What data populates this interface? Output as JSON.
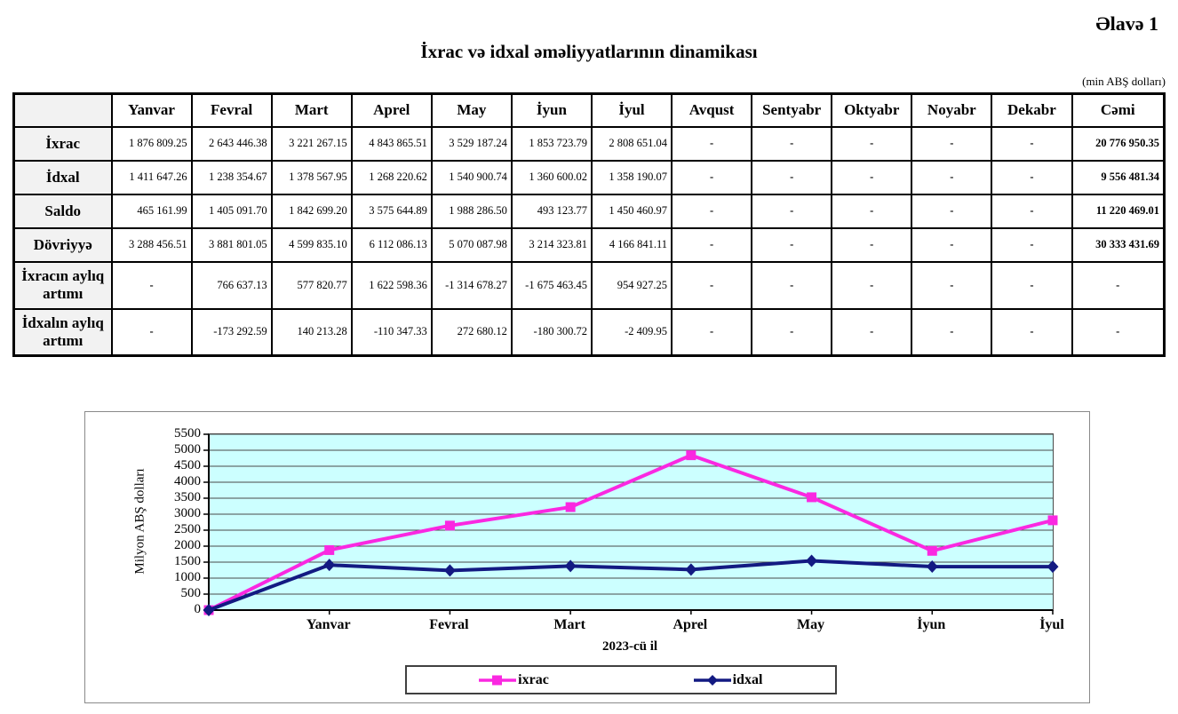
{
  "page": {
    "appendix_label": "Əlavə 1",
    "title": "İxrac və idxal əməliyyatlarının dinamikası",
    "unit_note": "(min ABŞ dolları)"
  },
  "table": {
    "columns": [
      "",
      "Yanvar",
      "Fevral",
      "Mart",
      "Aprel",
      "May",
      "İyun",
      "İyul",
      "Avqust",
      "Sentyabr",
      "Oktyabr",
      "Noyabr",
      "Dekabr",
      "Cəmi"
    ],
    "rows": [
      {
        "label": "İxrac",
        "values": [
          "1 876 809.25",
          "2 643 446.38",
          "3 221 267.15",
          "4 843 865.51",
          "3 529 187.24",
          "1 853 723.79",
          "2 808 651.04",
          "-",
          "-",
          "-",
          "-",
          "-",
          "20 776 950.35"
        ]
      },
      {
        "label": "İdxal",
        "values": [
          "1 411 647.26",
          "1 238 354.67",
          "1 378 567.95",
          "1 268 220.62",
          "1 540 900.74",
          "1 360 600.02",
          "1 358 190.07",
          "-",
          "-",
          "-",
          "-",
          "-",
          "9 556 481.34"
        ]
      },
      {
        "label": "Saldo",
        "values": [
          "465 161.99",
          "1 405 091.70",
          "1 842 699.20",
          "3 575 644.89",
          "1 988 286.50",
          "493 123.77",
          "1 450 460.97",
          "-",
          "-",
          "-",
          "-",
          "-",
          "11 220 469.01"
        ]
      },
      {
        "label": "Dövriyyə",
        "values": [
          "3 288 456.51",
          "3 881 801.05",
          "4 599 835.10",
          "6 112 086.13",
          "5 070 087.98",
          "3 214 323.81",
          "4 166 841.11",
          "-",
          "-",
          "-",
          "-",
          "-",
          "30 333 431.69"
        ]
      },
      {
        "label": "İxracın aylıq artımı",
        "values": [
          "-",
          "766 637.13",
          "577 820.77",
          "1 622 598.36",
          "-1 314 678.27",
          "-1 675 463.45",
          "954 927.25",
          "-",
          "-",
          "-",
          "-",
          "-",
          "-"
        ]
      },
      {
        "label": "İdxalın aylıq artımı",
        "values": [
          "-",
          "-173 292.59",
          "140 213.28",
          "-110 347.33",
          "272 680.12",
          "-180 300.72",
          "-2 409.95",
          "-",
          "-",
          "-",
          "-",
          "-",
          "-"
        ]
      }
    ]
  },
  "chart_data": {
    "type": "line",
    "categories": [
      "",
      "Yanvar",
      "Fevral",
      "Mart",
      "Aprel",
      "May",
      "İyun",
      "İyul"
    ],
    "series": [
      {
        "name": "ixrac",
        "color": "#fa28e1",
        "marker": "square",
        "values": [
          0,
          1876.81,
          2643.45,
          3221.27,
          4843.87,
          3529.19,
          1853.72,
          2808.65
        ]
      },
      {
        "name": "idxal",
        "color": "#131a82",
        "marker": "diamond",
        "values": [
          0,
          1411.65,
          1238.35,
          1378.57,
          1268.22,
          1540.9,
          1360.6,
          1358.19
        ]
      }
    ],
    "title": "",
    "xlabel": "2023-cü il",
    "ylabel": "Milyon ABŞ dolları",
    "ylim": [
      0,
      5500
    ],
    "ytick_step": 500,
    "grid": true,
    "plot_bg": "#ccffff",
    "grid_color": "#4a4a4a",
    "legend_position": "bottom"
  }
}
